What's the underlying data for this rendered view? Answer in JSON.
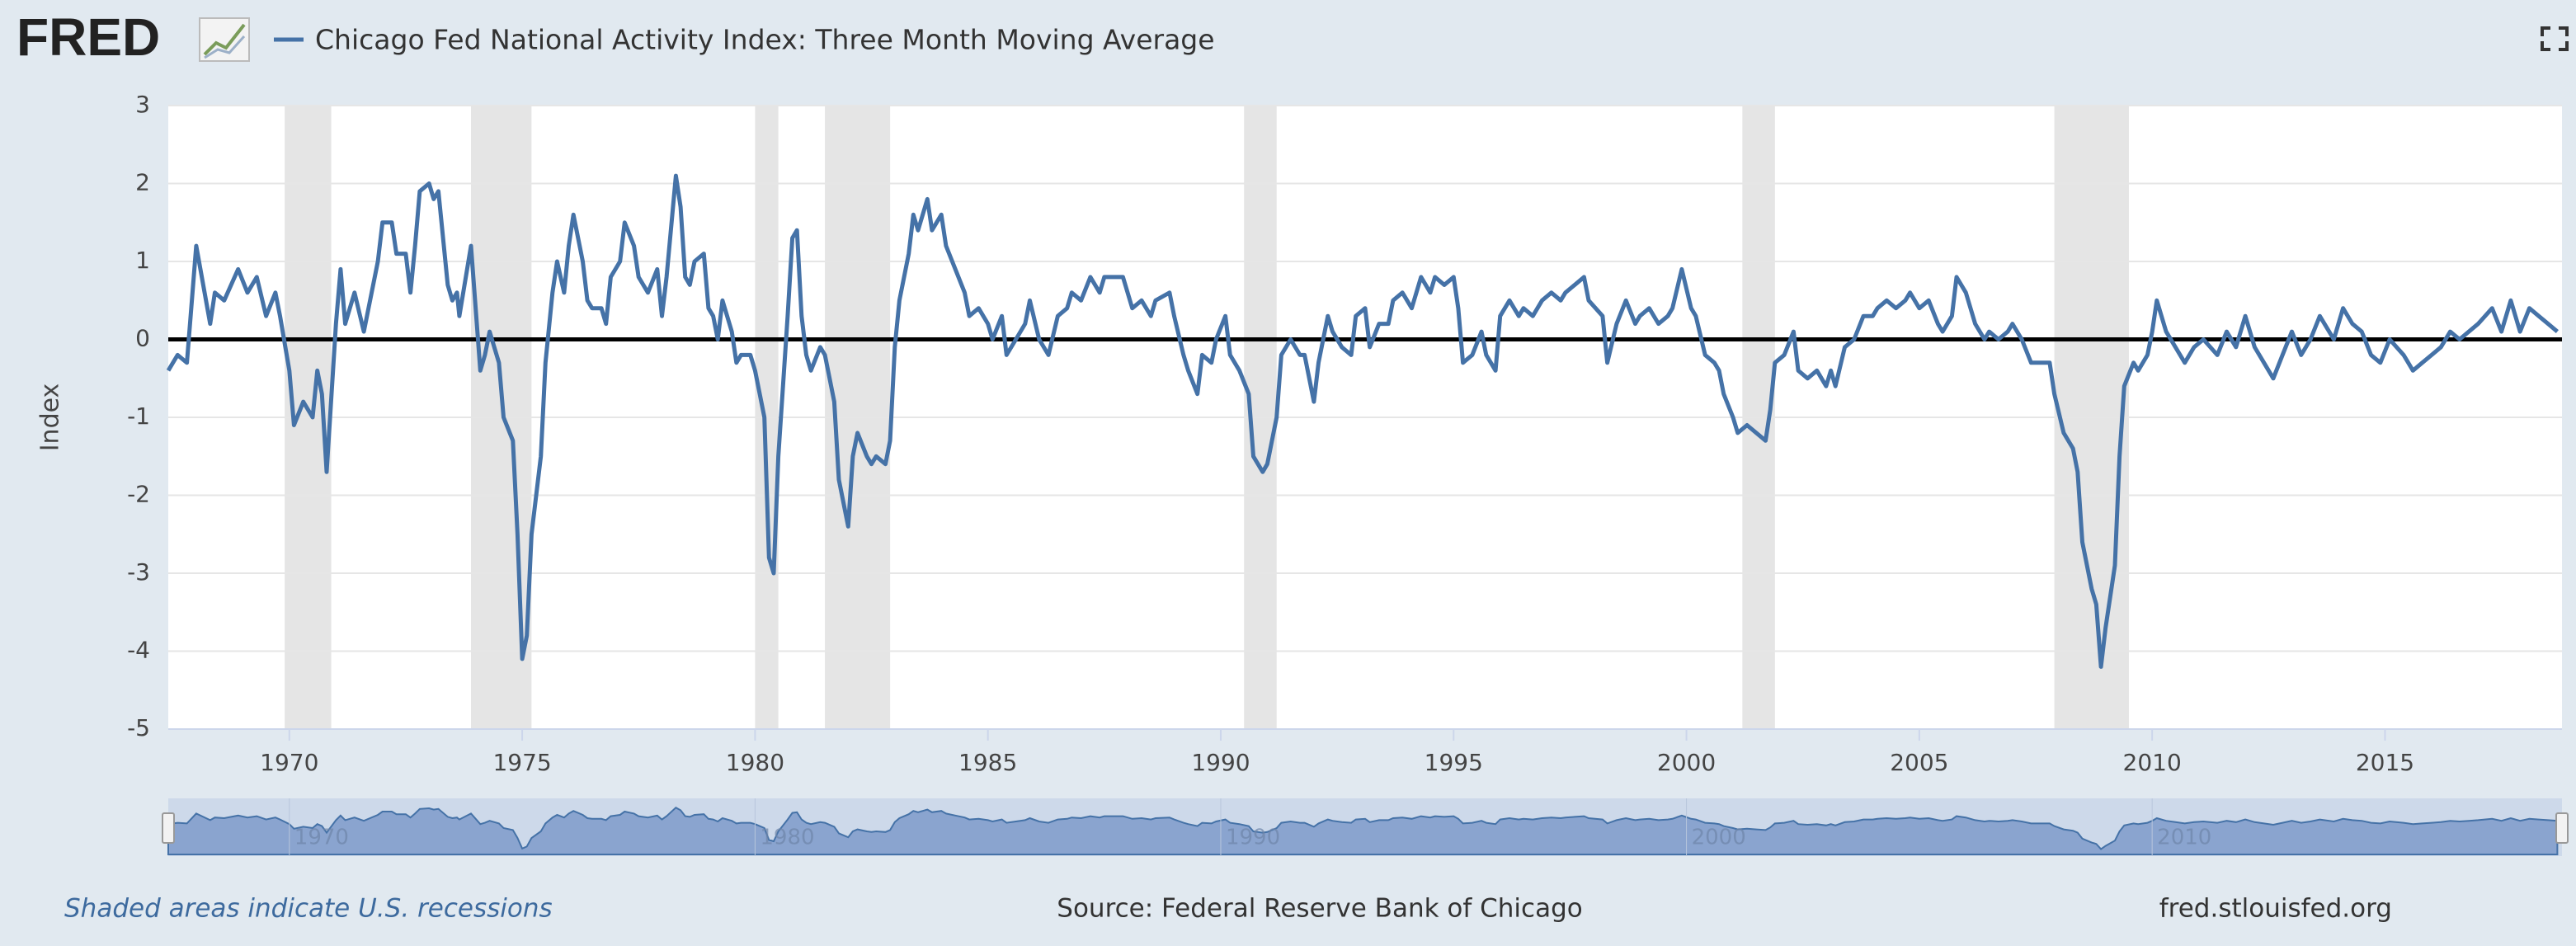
{
  "chart_data": {
    "type": "line",
    "logo": "FRED",
    "title": "Chicago Fed National Activity Index: Three Month Moving Average",
    "y_label": "Index",
    "note": "Shaded areas indicate U.S. recessions",
    "source": "Source: Federal Reserve Bank of Chicago",
    "site": "fred.stlouisfed.org",
    "xlim": [
      1967.4,
      2018.8
    ],
    "xticks": [
      1970,
      1975,
      1980,
      1985,
      1990,
      1995,
      2000,
      2005,
      2010,
      2015
    ],
    "ylim": [
      -5,
      3
    ],
    "yticks": [
      3,
      2,
      1,
      0,
      -1,
      -2,
      -3,
      -4,
      -5
    ],
    "grid": true,
    "reference_line": 0,
    "recessions": [
      [
        1969.9,
        1970.9
      ],
      [
        1973.9,
        1975.2
      ],
      [
        1980.0,
        1980.5
      ],
      [
        1981.5,
        1982.9
      ],
      [
        1990.5,
        1991.2
      ],
      [
        2001.2,
        2001.9
      ],
      [
        2007.9,
        2009.5
      ]
    ],
    "navigator_xticks": [
      1970,
      1980,
      1990,
      2000,
      2010
    ],
    "series": [
      {
        "name": "Chicago Fed National Activity Index: Three Month Moving Average",
        "color": "#4572a7",
        "x": [
          1967.4,
          1967.6,
          1967.8,
          1968.0,
          1968.3,
          1968.4,
          1968.6,
          1968.9,
          1969.1,
          1969.3,
          1969.5,
          1969.7,
          1969.8,
          1970.0,
          1970.1,
          1970.3,
          1970.5,
          1970.6,
          1970.7,
          1970.8,
          1971.0,
          1971.1,
          1971.2,
          1971.4,
          1971.6,
          1971.9,
          1972.0,
          1972.2,
          1972.3,
          1972.5,
          1972.6,
          1972.7,
          1972.8,
          1973.0,
          1973.1,
          1973.2,
          1973.4,
          1973.5,
          1973.6,
          1973.65,
          1973.9,
          1974.1,
          1974.2,
          1974.3,
          1974.5,
          1974.6,
          1974.8,
          1974.9,
          1975.0,
          1975.1,
          1975.2,
          1975.4,
          1975.5,
          1975.65,
          1975.75,
          1975.9,
          1976.0,
          1976.1,
          1976.3,
          1976.4,
          1976.5,
          1976.7,
          1976.8,
          1976.9,
          1977.1,
          1977.2,
          1977.4,
          1977.5,
          1977.7,
          1977.9,
          1978.0,
          1978.1,
          1978.3,
          1978.4,
          1978.5,
          1978.6,
          1978.7,
          1978.9,
          1979.0,
          1979.1,
          1979.2,
          1979.3,
          1979.5,
          1979.6,
          1979.7,
          1979.9,
          1980.0,
          1980.2,
          1980.3,
          1980.4,
          1980.5,
          1980.7,
          1980.8,
          1980.9,
          1981.0,
          1981.1,
          1981.2,
          1981.4,
          1981.5,
          1981.7,
          1981.8,
          1982.0,
          1982.1,
          1982.2,
          1982.4,
          1982.5,
          1982.6,
          1982.8,
          1982.9,
          1983.0,
          1983.1,
          1983.3,
          1983.4,
          1983.5,
          1983.7,
          1983.8,
          1984.0,
          1984.1,
          1984.3,
          1984.5,
          1984.6,
          1984.8,
          1985.0,
          1985.1,
          1985.3,
          1985.4,
          1985.6,
          1985.8,
          1985.9,
          1986.1,
          1986.3,
          1986.5,
          1986.7,
          1986.8,
          1987.0,
          1987.2,
          1987.4,
          1987.5,
          1987.7,
          1987.9,
          1988.1,
          1988.3,
          1988.5,
          1988.6,
          1988.9,
          1989.0,
          1989.2,
          1989.3,
          1989.5,
          1989.6,
          1989.8,
          1989.9,
          1990.1,
          1990.2,
          1990.4,
          1990.6,
          1990.7,
          1990.9,
          1991.0,
          1991.2,
          1991.3,
          1991.5,
          1991.7,
          1991.8,
          1992.0,
          1992.1,
          1992.3,
          1992.4,
          1992.6,
          1992.8,
          1992.9,
          1993.1,
          1993.2,
          1993.4,
          1993.6,
          1993.7,
          1993.9,
          1994.1,
          1994.3,
          1994.5,
          1994.6,
          1994.8,
          1995.0,
          1995.1,
          1995.2,
          1995.4,
          1995.6,
          1995.7,
          1995.9,
          1996.0,
          1996.2,
          1996.4,
          1996.5,
          1996.7,
          1996.9,
          1997.1,
          1997.3,
          1997.4,
          1997.6,
          1997.8,
          1997.9,
          1998.2,
          1998.3,
          1998.5,
          1998.7,
          1998.9,
          1999.0,
          1999.2,
          1999.4,
          1999.6,
          1999.7,
          1999.9,
          2000.1,
          2000.2,
          2000.4,
          2000.6,
          2000.7,
          2000.8,
          2001.0,
          2001.1,
          2001.3,
          2001.5,
          2001.7,
          2001.8,
          2001.9,
          2002.1,
          2002.3,
          2002.4,
          2002.6,
          2002.8,
          2003.0,
          2003.1,
          2003.2,
          2003.4,
          2003.6,
          2003.8,
          2004.0,
          2004.1,
          2004.3,
          2004.5,
          2004.7,
          2004.8,
          2005.0,
          2005.2,
          2005.4,
          2005.5,
          2005.7,
          2005.8,
          2006.0,
          2006.2,
          2006.4,
          2006.5,
          2006.7,
          2006.9,
          2007.0,
          2007.2,
          2007.4,
          2007.6,
          2007.8,
          2007.9,
          2008.1,
          2008.3,
          2008.4,
          2008.5,
          2008.7,
          2008.8,
          2008.9,
          2009.0,
          2009.2,
          2009.3,
          2009.4,
          2009.6,
          2009.7,
          2009.9,
          2010.0,
          2010.1,
          2010.3,
          2010.5,
          2010.7,
          2010.9,
          2011.1,
          2011.4,
          2011.6,
          2011.8,
          2012.0,
          2012.2,
          2012.4,
          2012.6,
          2012.8,
          2013.0,
          2013.2,
          2013.4,
          2013.6,
          2013.9,
          2014.1,
          2014.3,
          2014.5,
          2014.7,
          2014.9,
          2015.1,
          2015.4,
          2015.6,
          2015.8,
          2016.0,
          2016.2,
          2016.4,
          2016.6,
          2016.8,
          2017.0,
          2017.3,
          2017.5,
          2017.7,
          2017.9,
          2018.1,
          2018.3,
          2018.5,
          2018.7
        ],
        "values": [
          -0.4,
          -0.2,
          -0.3,
          1.2,
          0.2,
          0.6,
          0.5,
          0.9,
          0.6,
          0.8,
          0.3,
          0.6,
          0.3,
          -0.4,
          -1.1,
          -0.8,
          -1.0,
          -0.4,
          -0.7,
          -1.7,
          0.2,
          0.9,
          0.2,
          0.6,
          0.1,
          1.0,
          1.5,
          1.5,
          1.1,
          1.1,
          0.6,
          1.2,
          1.9,
          2.0,
          1.8,
          1.9,
          0.7,
          0.5,
          0.6,
          0.3,
          1.2,
          -0.4,
          -0.2,
          0.1,
          -0.3,
          -1.0,
          -1.3,
          -2.5,
          -4.1,
          -3.8,
          -2.5,
          -1.5,
          -0.3,
          0.6,
          1.0,
          0.6,
          1.2,
          1.6,
          1.0,
          0.5,
          0.4,
          0.4,
          0.2,
          0.8,
          1.0,
          1.5,
          1.2,
          0.8,
          0.6,
          0.9,
          0.3,
          0.8,
          2.1,
          1.7,
          0.8,
          0.7,
          1.0,
          1.1,
          0.4,
          0.3,
          0.0,
          0.5,
          0.1,
          -0.3,
          -0.2,
          -0.2,
          -0.4,
          -1.0,
          -2.8,
          -3.0,
          -1.5,
          0.3,
          1.3,
          1.4,
          0.3,
          -0.2,
          -0.4,
          -0.1,
          -0.2,
          -0.8,
          -1.8,
          -2.4,
          -1.5,
          -1.2,
          -1.5,
          -1.6,
          -1.5,
          -1.6,
          -1.3,
          -0.1,
          0.5,
          1.1,
          1.6,
          1.4,
          1.8,
          1.4,
          1.6,
          1.2,
          0.9,
          0.6,
          0.3,
          0.4,
          0.2,
          0.0,
          0.3,
          -0.2,
          0.0,
          0.2,
          0.5,
          0.0,
          -0.2,
          0.3,
          0.4,
          0.6,
          0.5,
          0.8,
          0.6,
          0.8,
          0.8,
          0.8,
          0.4,
          0.5,
          0.3,
          0.5,
          0.6,
          0.3,
          -0.2,
          -0.4,
          -0.7,
          -0.2,
          -0.3,
          0.0,
          0.3,
          -0.2,
          -0.4,
          -0.7,
          -1.5,
          -1.7,
          -1.6,
          -1.0,
          -0.2,
          0.0,
          -0.2,
          -0.2,
          -0.8,
          -0.3,
          0.3,
          0.1,
          -0.1,
          -0.2,
          0.3,
          0.4,
          -0.1,
          0.2,
          0.2,
          0.5,
          0.6,
          0.4,
          0.8,
          0.6,
          0.8,
          0.7,
          0.8,
          0.4,
          -0.3,
          -0.2,
          0.1,
          -0.2,
          -0.4,
          0.3,
          0.5,
          0.3,
          0.4,
          0.3,
          0.5,
          0.6,
          0.5,
          0.6,
          0.7,
          0.8,
          0.5,
          0.3,
          -0.3,
          0.2,
          0.5,
          0.2,
          0.3,
          0.4,
          0.2,
          0.3,
          0.4,
          0.9,
          0.4,
          0.3,
          -0.2,
          -0.3,
          -0.4,
          -0.7,
          -1.0,
          -1.2,
          -1.1,
          -1.2,
          -1.3,
          -0.9,
          -0.3,
          -0.2,
          0.1,
          -0.4,
          -0.5,
          -0.4,
          -0.6,
          -0.4,
          -0.6,
          -0.1,
          0.0,
          0.3,
          0.3,
          0.4,
          0.5,
          0.4,
          0.5,
          0.6,
          0.4,
          0.5,
          0.2,
          0.1,
          0.3,
          0.8,
          0.6,
          0.2,
          0.0,
          0.1,
          0.0,
          0.1,
          0.2,
          0.0,
          -0.3,
          -0.3,
          -0.3,
          -0.7,
          -1.2,
          -1.4,
          -1.7,
          -2.6,
          -3.2,
          -3.4,
          -4.2,
          -3.7,
          -2.9,
          -1.5,
          -0.6,
          -0.3,
          -0.4,
          -0.2,
          0.1,
          0.5,
          0.1,
          -0.1,
          -0.3,
          -0.1,
          0.0,
          -0.2,
          0.1,
          -0.1,
          0.3,
          -0.1,
          -0.3,
          -0.5,
          -0.2,
          0.1,
          -0.2,
          0.0,
          0.3,
          0.0,
          0.4,
          0.2,
          0.1,
          -0.2,
          -0.3,
          0.0,
          -0.2,
          -0.4,
          -0.3,
          -0.2,
          -0.1,
          0.1,
          0.0,
          0.1,
          0.2,
          0.4,
          0.1,
          0.5,
          0.1,
          0.4,
          0.3,
          0.2,
          0.1
        ]
      }
    ]
  }
}
